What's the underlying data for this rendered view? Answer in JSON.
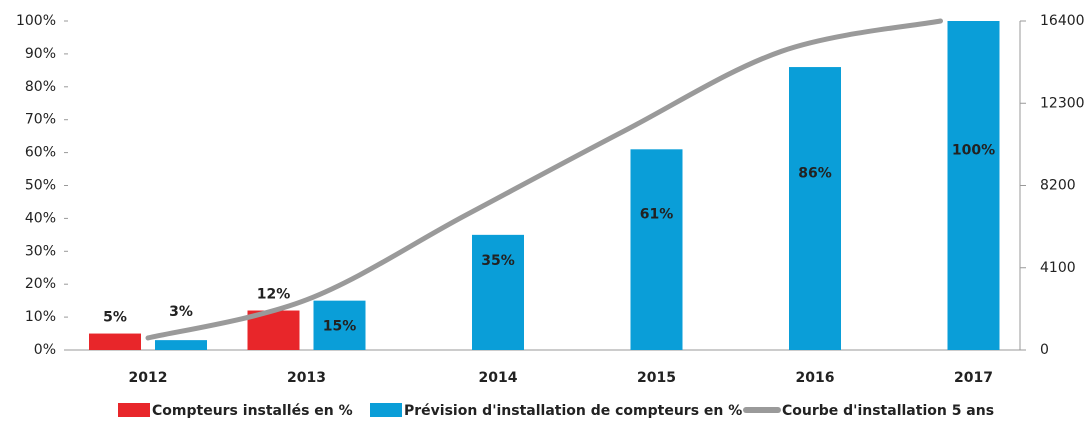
{
  "chart_data": {
    "type": "bar",
    "categories": [
      "2012",
      "2013",
      "2014",
      "2015",
      "2016",
      "2017"
    ],
    "series": [
      {
        "name": "Compteurs installés en %",
        "color": "#e8262a",
        "values": [
          5,
          12,
          null,
          null,
          null,
          null
        ],
        "value_labels": [
          "5%",
          "12%",
          null,
          null,
          null,
          null
        ]
      },
      {
        "name": "Prévision d'installation de compteurs en %",
        "color": "#0a9ed8",
        "values": [
          3,
          15,
          35,
          61,
          86,
          100
        ],
        "value_labels": [
          "3%",
          "15%",
          "35%",
          "61%",
          "86%",
          "100%"
        ]
      },
      {
        "name": "Courbe d'installation 5 ans",
        "color": "#9a9a9a",
        "type": "line",
        "axis": "y2",
        "values": [
          600,
          2500,
          6700,
          10900,
          14900,
          16400
        ]
      }
    ],
    "ylim": [
      0,
      100
    ],
    "yticks": [
      {
        "value": 0,
        "label": "0%"
      },
      {
        "value": 10,
        "label": "10%"
      },
      {
        "value": 20,
        "label": "20%"
      },
      {
        "value": 30,
        "label": "30%"
      },
      {
        "value": 40,
        "label": "40%"
      },
      {
        "value": 50,
        "label": "50%"
      },
      {
        "value": 60,
        "label": "60%"
      },
      {
        "value": 70,
        "label": "70%"
      },
      {
        "value": 80,
        "label": "80%"
      },
      {
        "value": 90,
        "label": "90%"
      },
      {
        "value": 100,
        "label": "100%"
      }
    ],
    "y2lim": [
      0,
      16400
    ],
    "y2ticks": [
      0,
      4100,
      8200,
      12300,
      16400
    ],
    "legend": "bottom"
  }
}
